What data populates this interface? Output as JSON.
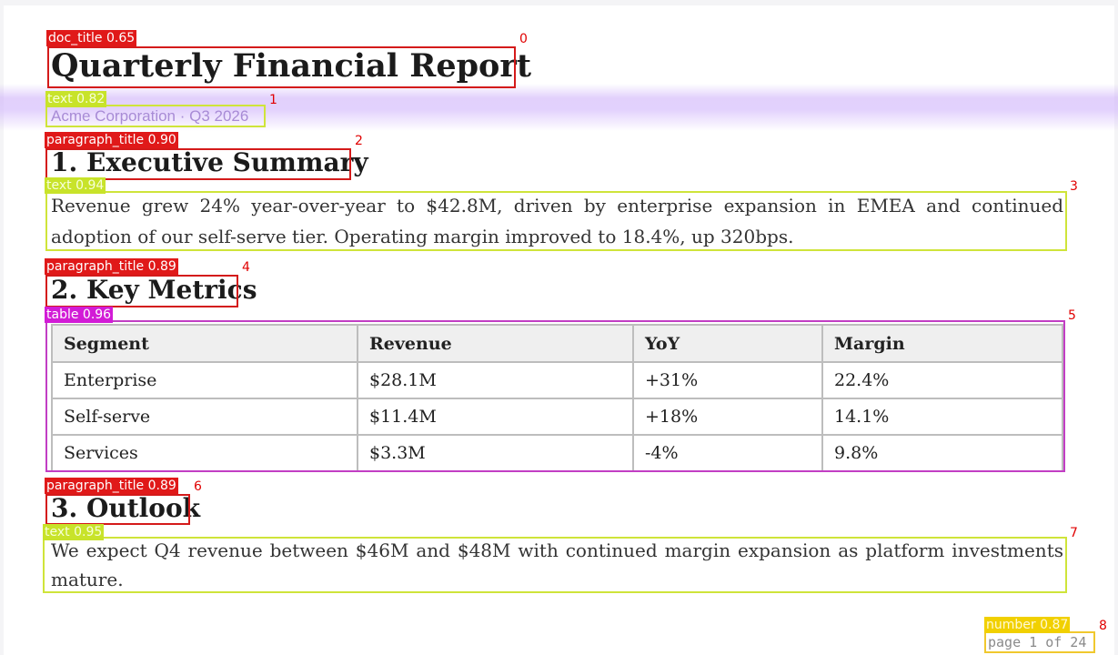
{
  "document": {
    "title": "Quarterly Financial Report",
    "subtitle": "Acme Corporation · Q3 2026",
    "sections": [
      {
        "heading": "1. Executive Summary",
        "body": "Revenue grew 24% year-over-year to $42.8M, driven by enterprise expansion in EMEA and continued adoption of our self-serve tier. Operating margin improved to 18.4%, up 320bps."
      },
      {
        "heading": "2. Key Metrics"
      },
      {
        "heading": "3. Outlook",
        "body": "We expect Q4 revenue between $46M and $48M with continued margin expansion as platform investments mature."
      }
    ],
    "metrics_table": {
      "columns": [
        "Segment",
        "Revenue",
        "YoY",
        "Margin"
      ],
      "rows": [
        [
          "Enterprise",
          "$28.1M",
          "+31%",
          "22.4%"
        ],
        [
          "Self-serve",
          "$11.4M",
          "+18%",
          "14.1%"
        ],
        [
          "Services",
          "$3.3M",
          "-4%",
          "9.8%"
        ]
      ]
    },
    "page_number": "page 1 of 24"
  },
  "annotations": [
    {
      "index": "0",
      "label": "doc_title 0.65",
      "color": "#e01919"
    },
    {
      "index": "1",
      "label": "text 0.82",
      "color": "#c8e32a"
    },
    {
      "index": "2",
      "label": "paragraph_title 0.90",
      "color": "#e01919"
    },
    {
      "index": "3",
      "label": "text 0.94",
      "color": "#c8e32a"
    },
    {
      "index": "4",
      "label": "paragraph_title 0.89",
      "color": "#e01919"
    },
    {
      "index": "5",
      "label": "table 0.96",
      "color": "#d21bd6"
    },
    {
      "index": "6",
      "label": "paragraph_title 0.89",
      "color": "#e01919"
    },
    {
      "index": "7",
      "label": "text 0.95",
      "color": "#c8e32a"
    },
    {
      "index": "8",
      "label": "number 0.87",
      "color": "#f1d000"
    }
  ]
}
